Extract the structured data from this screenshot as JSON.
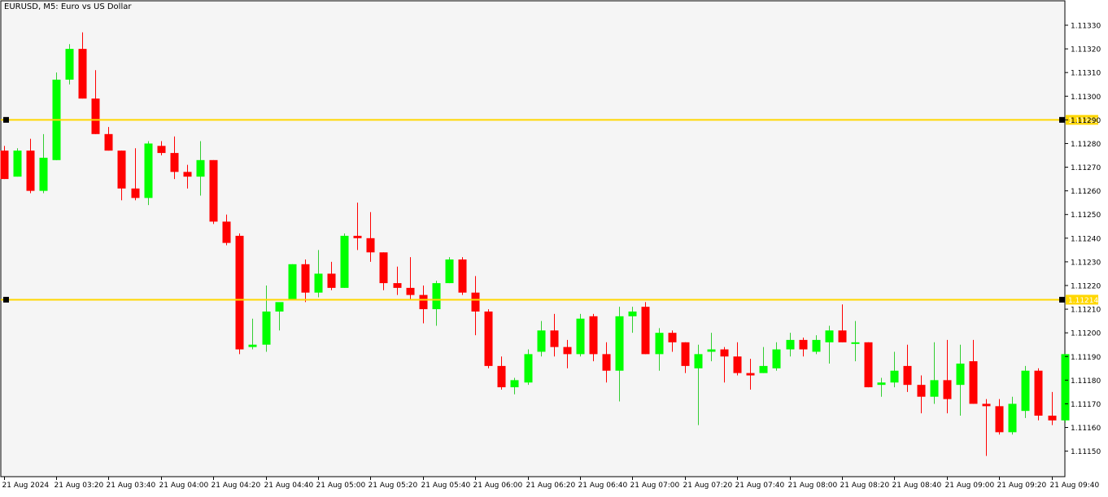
{
  "window": {
    "title": "EURUSD, M5:  Euro vs US Dollar"
  },
  "colors": {
    "background": "#f5f5f5",
    "bull": "#00ff00",
    "bear": "#ff0000",
    "wick_bull": "#32cd32",
    "wick_bear": "#ff0000",
    "level_line": "#ffd700",
    "axis": "#000000"
  },
  "chart_data": {
    "type": "candlestick",
    "symbol": "EURUSD",
    "timeframe": "M5",
    "title": "EURUSD, M5:  Euro vs US Dollar",
    "ylim": [
      1.11145,
      1.11341
    ],
    "y_ticks": [
      "1.11330",
      "1.11320",
      "1.11310",
      "1.11300",
      "1.11290",
      "1.11280",
      "1.11270",
      "1.11260",
      "1.11250",
      "1.11240",
      "1.11230",
      "1.11220",
      "1.11210",
      "1.11200",
      "1.11190",
      "1.11180",
      "1.11170",
      "1.11160",
      "1.11150"
    ],
    "x_tick_labels": [
      "21 Aug 2024",
      "21 Aug 03:20",
      "21 Aug 03:40",
      "21 Aug 04:00",
      "21 Aug 04:20",
      "21 Aug 04:40",
      "21 Aug 05:00",
      "21 Aug 05:20",
      "21 Aug 05:40",
      "21 Aug 06:00",
      "21 Aug 06:20",
      "21 Aug 06:40",
      "21 Aug 07:00",
      "21 Aug 07:20",
      "21 Aug 07:40",
      "21 Aug 08:00",
      "21 Aug 08:20",
      "21 Aug 08:40",
      "21 Aug 09:00",
      "21 Aug 09:20",
      "21 Aug 09:40"
    ],
    "levels": [
      {
        "price": 1.1129,
        "label": "1.11290"
      },
      {
        "price": 1.11214,
        "label": "1.11214"
      }
    ],
    "candles": [
      {
        "o": 1.11277,
        "h": 1.11279,
        "l": 1.11265,
        "c": 1.11265
      },
      {
        "o": 1.11266,
        "h": 1.11278,
        "l": 1.11266,
        "c": 1.11277
      },
      {
        "o": 1.11277,
        "h": 1.11282,
        "l": 1.11259,
        "c": 1.1126
      },
      {
        "o": 1.1126,
        "h": 1.11284,
        "l": 1.11259,
        "c": 1.11274
      },
      {
        "o": 1.11273,
        "h": 1.1131,
        "l": 1.11273,
        "c": 1.11307
      },
      {
        "o": 1.11307,
        "h": 1.11322,
        "l": 1.11305,
        "c": 1.1132
      },
      {
        "o": 1.1132,
        "h": 1.11327,
        "l": 1.11299,
        "c": 1.11299
      },
      {
        "o": 1.11299,
        "h": 1.11311,
        "l": 1.11284,
        "c": 1.11284
      },
      {
        "o": 1.11284,
        "h": 1.11287,
        "l": 1.11277,
        "c": 1.11277
      },
      {
        "o": 1.11277,
        "h": 1.11277,
        "l": 1.11256,
        "c": 1.11261
      },
      {
        "o": 1.11261,
        "h": 1.11278,
        "l": 1.11256,
        "c": 1.11257
      },
      {
        "o": 1.11257,
        "h": 1.11281,
        "l": 1.11254,
        "c": 1.1128
      },
      {
        "o": 1.11279,
        "h": 1.11281,
        "l": 1.11275,
        "c": 1.11276
      },
      {
        "o": 1.11276,
        "h": 1.11283,
        "l": 1.11265,
        "c": 1.11268
      },
      {
        "o": 1.11268,
        "h": 1.11271,
        "l": 1.11261,
        "c": 1.11266
      },
      {
        "o": 1.11266,
        "h": 1.11281,
        "l": 1.11258,
        "c": 1.11273
      },
      {
        "o": 1.11273,
        "h": 1.11273,
        "l": 1.11246,
        "c": 1.11247
      },
      {
        "o": 1.11247,
        "h": 1.1125,
        "l": 1.11237,
        "c": 1.11238
      },
      {
        "o": 1.11241,
        "h": 1.11242,
        "l": 1.11191,
        "c": 1.11193
      },
      {
        "o": 1.11194,
        "h": 1.11206,
        "l": 1.11193,
        "c": 1.11195
      },
      {
        "o": 1.11195,
        "h": 1.1122,
        "l": 1.11192,
        "c": 1.11209
      },
      {
        "o": 1.11209,
        "h": 1.11212,
        "l": 1.11201,
        "c": 1.11213
      },
      {
        "o": 1.11214,
        "h": 1.11229,
        "l": 1.11214,
        "c": 1.11229
      },
      {
        "o": 1.11229,
        "h": 1.11231,
        "l": 1.11213,
        "c": 1.11217
      },
      {
        "o": 1.11217,
        "h": 1.11235,
        "l": 1.11215,
        "c": 1.11225
      },
      {
        "o": 1.11225,
        "h": 1.1123,
        "l": 1.11218,
        "c": 1.11219
      },
      {
        "o": 1.11219,
        "h": 1.11242,
        "l": 1.11219,
        "c": 1.11241
      },
      {
        "o": 1.11241,
        "h": 1.11255,
        "l": 1.11235,
        "c": 1.1124
      },
      {
        "o": 1.1124,
        "h": 1.11251,
        "l": 1.1123,
        "c": 1.11234
      },
      {
        "o": 1.11234,
        "h": 1.11234,
        "l": 1.11218,
        "c": 1.11221
      },
      {
        "o": 1.11221,
        "h": 1.11228,
        "l": 1.11216,
        "c": 1.11219
      },
      {
        "o": 1.11219,
        "h": 1.11232,
        "l": 1.11214,
        "c": 1.11216
      },
      {
        "o": 1.11216,
        "h": 1.1122,
        "l": 1.11204,
        "c": 1.1121
      },
      {
        "o": 1.1121,
        "h": 1.11222,
        "l": 1.11203,
        "c": 1.11221
      },
      {
        "o": 1.11221,
        "h": 1.11232,
        "l": 1.11221,
        "c": 1.11231
      },
      {
        "o": 1.11231,
        "h": 1.11232,
        "l": 1.11216,
        "c": 1.11217
      },
      {
        "o": 1.11217,
        "h": 1.11224,
        "l": 1.11199,
        "c": 1.11209
      },
      {
        "o": 1.11209,
        "h": 1.1121,
        "l": 1.11185,
        "c": 1.11186
      },
      {
        "o": 1.11186,
        "h": 1.1119,
        "l": 1.11176,
        "c": 1.11177
      },
      {
        "o": 1.11177,
        "h": 1.11181,
        "l": 1.11174,
        "c": 1.1118
      },
      {
        "o": 1.11179,
        "h": 1.11193,
        "l": 1.11178,
        "c": 1.11191
      },
      {
        "o": 1.11192,
        "h": 1.11205,
        "l": 1.1119,
        "c": 1.11201
      },
      {
        "o": 1.11201,
        "h": 1.11208,
        "l": 1.1119,
        "c": 1.11194
      },
      {
        "o": 1.11194,
        "h": 1.11197,
        "l": 1.11185,
        "c": 1.11191
      },
      {
        "o": 1.11191,
        "h": 1.11208,
        "l": 1.1119,
        "c": 1.11206
      },
      {
        "o": 1.11207,
        "h": 1.11208,
        "l": 1.11188,
        "c": 1.11191
      },
      {
        "o": 1.11191,
        "h": 1.11196,
        "l": 1.11179,
        "c": 1.11184
      },
      {
        "o": 1.11184,
        "h": 1.11211,
        "l": 1.11171,
        "c": 1.11207
      },
      {
        "o": 1.11207,
        "h": 1.11211,
        "l": 1.112,
        "c": 1.11209
      },
      {
        "o": 1.11211,
        "h": 1.11213,
        "l": 1.11191,
        "c": 1.11191
      },
      {
        "o": 1.11191,
        "h": 1.11202,
        "l": 1.11184,
        "c": 1.112
      },
      {
        "o": 1.112,
        "h": 1.11201,
        "l": 1.11192,
        "c": 1.11196
      },
      {
        "o": 1.11196,
        "h": 1.11196,
        "l": 1.11183,
        "c": 1.11186
      },
      {
        "o": 1.11185,
        "h": 1.11195,
        "l": 1.11161,
        "c": 1.11191
      },
      {
        "o": 1.11192,
        "h": 1.112,
        "l": 1.11188,
        "c": 1.11193
      },
      {
        "o": 1.11193,
        "h": 1.11194,
        "l": 1.11179,
        "c": 1.1119
      },
      {
        "o": 1.1119,
        "h": 1.11196,
        "l": 1.11182,
        "c": 1.11183
      },
      {
        "o": 1.11183,
        "h": 1.11189,
        "l": 1.11176,
        "c": 1.11182
      },
      {
        "o": 1.11183,
        "h": 1.11194,
        "l": 1.11183,
        "c": 1.11186
      },
      {
        "o": 1.11185,
        "h": 1.11196,
        "l": 1.11184,
        "c": 1.11193
      },
      {
        "o": 1.11193,
        "h": 1.112,
        "l": 1.1119,
        "c": 1.11197
      },
      {
        "o": 1.11197,
        "h": 1.11198,
        "l": 1.1119,
        "c": 1.11193
      },
      {
        "o": 1.11192,
        "h": 1.11199,
        "l": 1.11191,
        "c": 1.11197
      },
      {
        "o": 1.11196,
        "h": 1.11203,
        "l": 1.11187,
        "c": 1.11201
      },
      {
        "o": 1.11201,
        "h": 1.11212,
        "l": 1.11196,
        "c": 1.11196
      },
      {
        "o": 1.11196,
        "h": 1.11205,
        "l": 1.11188,
        "c": 1.11196
      },
      {
        "o": 1.11196,
        "h": 1.11196,
        "l": 1.11177,
        "c": 1.11177
      },
      {
        "o": 1.11178,
        "h": 1.11181,
        "l": 1.11173,
        "c": 1.11179
      },
      {
        "o": 1.11179,
        "h": 1.11192,
        "l": 1.11177,
        "c": 1.11184
      },
      {
        "o": 1.11186,
        "h": 1.11195,
        "l": 1.11175,
        "c": 1.11178
      },
      {
        "o": 1.11178,
        "h": 1.11182,
        "l": 1.11166,
        "c": 1.11173
      },
      {
        "o": 1.11173,
        "h": 1.11196,
        "l": 1.1117,
        "c": 1.1118
      },
      {
        "o": 1.1118,
        "h": 1.11197,
        "l": 1.11166,
        "c": 1.11172
      },
      {
        "o": 1.11178,
        "h": 1.11195,
        "l": 1.11165,
        "c": 1.11187
      },
      {
        "o": 1.11188,
        "h": 1.11197,
        "l": 1.1117,
        "c": 1.1117
      },
      {
        "o": 1.1117,
        "h": 1.11172,
        "l": 1.11148,
        "c": 1.11169
      },
      {
        "o": 1.11169,
        "h": 1.11172,
        "l": 1.11157,
        "c": 1.11158
      },
      {
        "o": 1.11158,
        "h": 1.11173,
        "l": 1.11157,
        "c": 1.1117
      },
      {
        "o": 1.11167,
        "h": 1.11186,
        "l": 1.11164,
        "c": 1.11184
      },
      {
        "o": 1.11184,
        "h": 1.11185,
        "l": 1.11163,
        "c": 1.11165
      },
      {
        "o": 1.11165,
        "h": 1.11175,
        "l": 1.11161,
        "c": 1.11163
      },
      {
        "o": 1.11163,
        "h": 1.11191,
        "l": 1.11162,
        "c": 1.11191
      }
    ]
  }
}
